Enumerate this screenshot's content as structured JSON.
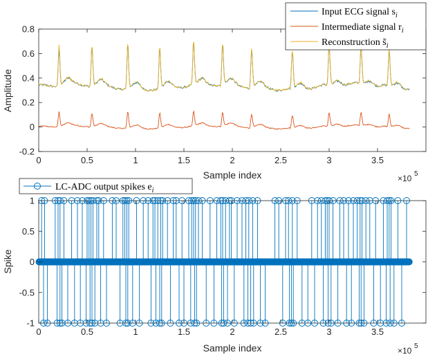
{
  "chart_data": [
    {
      "type": "line",
      "title": "",
      "xlabel": "Sample index",
      "ylabel": "Amplitude",
      "xlim": [
        0,
        400000
      ],
      "ylim": [
        -0.2,
        0.8
      ],
      "x_ticks": [
        0,
        0.5,
        1,
        1.5,
        2,
        2.5,
        3,
        3.5
      ],
      "x_tick_labels": [
        "0",
        "0.5",
        "1",
        "1.5",
        "2",
        "2.5",
        "3",
        "3.5"
      ],
      "x_multiplier": "×10",
      "x_multiplier_exp": "5",
      "y_ticks": [
        -0.2,
        0,
        0.2,
        0.4,
        0.6,
        0.8
      ],
      "y_tick_labels": [
        "-0.2",
        "0",
        "0.2",
        "0.4",
        "0.6",
        "0.8"
      ],
      "grid": false,
      "legend_position": "top-right",
      "series": [
        {
          "name": "Input ECG signal s",
          "name_sub": "i",
          "color": "#0072BD",
          "baseline": 0.33
        },
        {
          "name": "Intermediate signal r",
          "name_sub": "i",
          "color": "#D95319",
          "baseline": 0.0
        },
        {
          "name": "Reconstruction s̃",
          "name_sub": "i",
          "color": "#EDB120",
          "baseline": 0.33
        }
      ],
      "peak_x": [
        21000,
        55000,
        92000,
        125000,
        160000,
        190000,
        220000,
        262000,
        300000,
        333000,
        362000
      ],
      "peak_input": [
        0.63,
        0.65,
        0.68,
        0.66,
        0.68,
        0.66,
        0.65,
        0.63,
        0.65,
        0.64,
        0.62
      ],
      "peak_recon": [
        0.66,
        0.66,
        0.7,
        0.67,
        0.69,
        0.67,
        0.66,
        0.64,
        0.66,
        0.65,
        0.63
      ],
      "peak_intermediate": [
        0.12,
        0.11,
        0.13,
        0.12,
        0.12,
        0.11,
        0.11,
        0.1,
        0.11,
        0.11,
        0.1
      ]
    },
    {
      "type": "stem",
      "title": "",
      "xlabel": "Sample index",
      "ylabel": "Spike",
      "xlim": [
        0,
        400000
      ],
      "ylim": [
        -1,
        1
      ],
      "x_ticks": [
        0,
        0.5,
        1,
        1.5,
        2,
        2.5,
        3,
        3.5
      ],
      "x_tick_labels": [
        "0",
        "0.5",
        "1",
        "1.5",
        "2",
        "2.5",
        "3",
        "3.5"
      ],
      "x_multiplier": "×10",
      "x_multiplier_exp": "5",
      "y_ticks": [
        -1,
        -0.5,
        0,
        0.5,
        1
      ],
      "y_tick_labels": [
        "-1",
        "-0.5",
        "0",
        "0.5",
        "1"
      ],
      "grid": false,
      "legend_position": "top-left",
      "series": [
        {
          "name": "LC-ADC output spikes e",
          "name_sub": "i",
          "color": "#0072BD"
        }
      ],
      "zero_range": [
        0,
        383000
      ],
      "positive_spikes_x": [
        3000,
        6000,
        17000,
        20000,
        22000,
        26000,
        34000,
        40000,
        45000,
        50000,
        52000,
        54000,
        56000,
        60000,
        62000,
        67000,
        76000,
        80000,
        87000,
        89000,
        91000,
        93000,
        101000,
        108000,
        113000,
        118000,
        120000,
        123000,
        126000,
        128000,
        133000,
        139000,
        142000,
        148000,
        155000,
        158000,
        160000,
        162000,
        165000,
        169000,
        177000,
        184000,
        188000,
        190000,
        193000,
        197000,
        199000,
        205000,
        210000,
        214000,
        217000,
        221000,
        226000,
        244000,
        248000,
        255000,
        258000,
        262000,
        267000,
        282000,
        288000,
        292000,
        296000,
        298000,
        300000,
        304000,
        311000,
        315000,
        320000,
        325000,
        329000,
        332000,
        334000,
        338000,
        342000,
        348000,
        356000,
        360000,
        362000,
        364000,
        371000,
        380000
      ],
      "negative_spikes_x": [
        5000,
        9000,
        19000,
        22000,
        24000,
        30000,
        37000,
        43000,
        49000,
        53000,
        55000,
        58000,
        64000,
        70000,
        84000,
        90000,
        92000,
        97000,
        104000,
        116000,
        121000,
        125000,
        127000,
        136000,
        145000,
        150000,
        157000,
        161000,
        163000,
        173000,
        181000,
        189000,
        191000,
        195000,
        202000,
        212000,
        216000,
        219000,
        222000,
        229000,
        234000,
        252000,
        259000,
        261000,
        263000,
        272000,
        278000,
        285000,
        294000,
        299000,
        302000,
        309000,
        318000,
        323000,
        331000,
        333000,
        336000,
        346000,
        353000,
        359000,
        363000,
        367000,
        375000
      ]
    }
  ]
}
